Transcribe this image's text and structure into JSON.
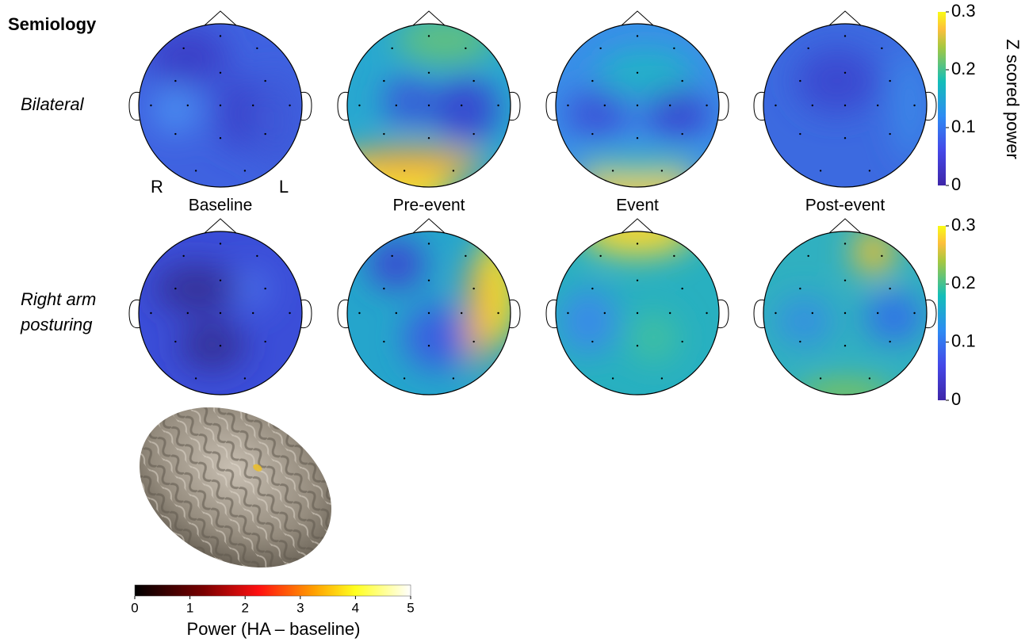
{
  "header": {
    "title": "Semiology"
  },
  "rows": [
    {
      "label_lines": [
        "Bilateral"
      ]
    },
    {
      "label_lines": [
        "Right arm",
        "posturing"
      ]
    }
  ],
  "columns": [
    "Baseline",
    "Pre-event",
    "Event",
    "Post-event"
  ],
  "orientation": {
    "right": "R",
    "left": "L"
  },
  "colorbars": [
    {
      "ticks": [
        "0",
        "0.1",
        "0.2",
        "0.3"
      ]
    },
    {
      "ticks": [
        "0",
        "0.1",
        "0.2",
        "0.3"
      ]
    }
  ],
  "colorbar_label": "Z scored power",
  "brain_colorbar": {
    "label": "Power (HA – baseline)",
    "ticks": [
      "0",
      "1",
      "2",
      "3",
      "4",
      "5"
    ]
  }
}
